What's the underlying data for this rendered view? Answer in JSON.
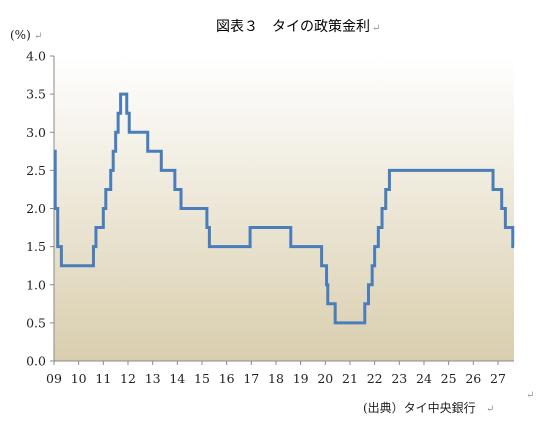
{
  "chart_data": {
    "type": "line",
    "title": "図表３　タイの政策金利",
    "title_mark": "↵",
    "unit_label": "(%)",
    "unit_mark": "↵",
    "source": "(出典）タイ中央銀行",
    "source_mark": "↵",
    "corner_mark": "↵",
    "xlabel": "",
    "ylabel": "",
    "xlim": [
      9.0,
      27.65
    ],
    "ylim": [
      0,
      4.0
    ],
    "x_ticks": [
      9,
      10,
      11,
      12,
      13,
      14,
      15,
      16,
      17,
      18,
      19,
      20,
      21,
      22,
      23,
      24,
      25,
      26,
      27
    ],
    "x_tick_labels": [
      "09",
      "10",
      "11",
      "12",
      "13",
      "14",
      "15",
      "16",
      "17",
      "18",
      "19",
      "20",
      "21",
      "22",
      "23",
      "24",
      "25",
      "26",
      "27"
    ],
    "y_ticks": [
      0,
      0.5,
      1.0,
      1.5,
      2.0,
      2.5,
      3.0,
      3.5,
      4.0
    ],
    "y_tick_labels": [
      "0.0",
      "0.5",
      "1.0",
      "1.5",
      "2.0",
      "2.5",
      "3.0",
      "3.5",
      "4.0"
    ],
    "grid": false,
    "legend": "none",
    "colors": {
      "line": "#4a7ebb",
      "bg_top": "#ffffff",
      "bg_bottom": "#d9ceae",
      "axis": "#888888"
    },
    "series": [
      {
        "step": true,
        "points": [
          [
            9.0,
            2.75
          ],
          [
            9.05,
            2.0
          ],
          [
            9.15,
            1.5
          ],
          [
            9.3,
            1.25
          ],
          [
            10.6,
            1.5
          ],
          [
            10.7,
            1.75
          ],
          [
            11.0,
            2.0
          ],
          [
            11.1,
            2.25
          ],
          [
            11.3,
            2.5
          ],
          [
            11.4,
            2.75
          ],
          [
            11.5,
            3.0
          ],
          [
            11.6,
            3.25
          ],
          [
            11.7,
            3.5
          ],
          [
            11.95,
            3.25
          ],
          [
            12.05,
            3.0
          ],
          [
            12.8,
            2.75
          ],
          [
            13.35,
            2.5
          ],
          [
            13.9,
            2.25
          ],
          [
            14.15,
            2.0
          ],
          [
            15.2,
            1.75
          ],
          [
            15.3,
            1.5
          ],
          [
            16.95,
            1.75
          ],
          [
            18.6,
            1.5
          ],
          [
            19.85,
            1.25
          ],
          [
            20.05,
            1.0
          ],
          [
            20.1,
            0.75
          ],
          [
            20.4,
            0.5
          ],
          [
            21.6,
            0.75
          ],
          [
            21.75,
            1.0
          ],
          [
            21.9,
            1.25
          ],
          [
            22.0,
            1.5
          ],
          [
            22.15,
            1.75
          ],
          [
            22.3,
            2.0
          ],
          [
            22.45,
            2.25
          ],
          [
            22.6,
            2.5
          ],
          [
            26.8,
            2.25
          ],
          [
            27.15,
            2.0
          ],
          [
            27.3,
            1.75
          ],
          [
            27.6,
            1.5
          ],
          [
            27.65,
            1.5
          ]
        ]
      }
    ]
  }
}
